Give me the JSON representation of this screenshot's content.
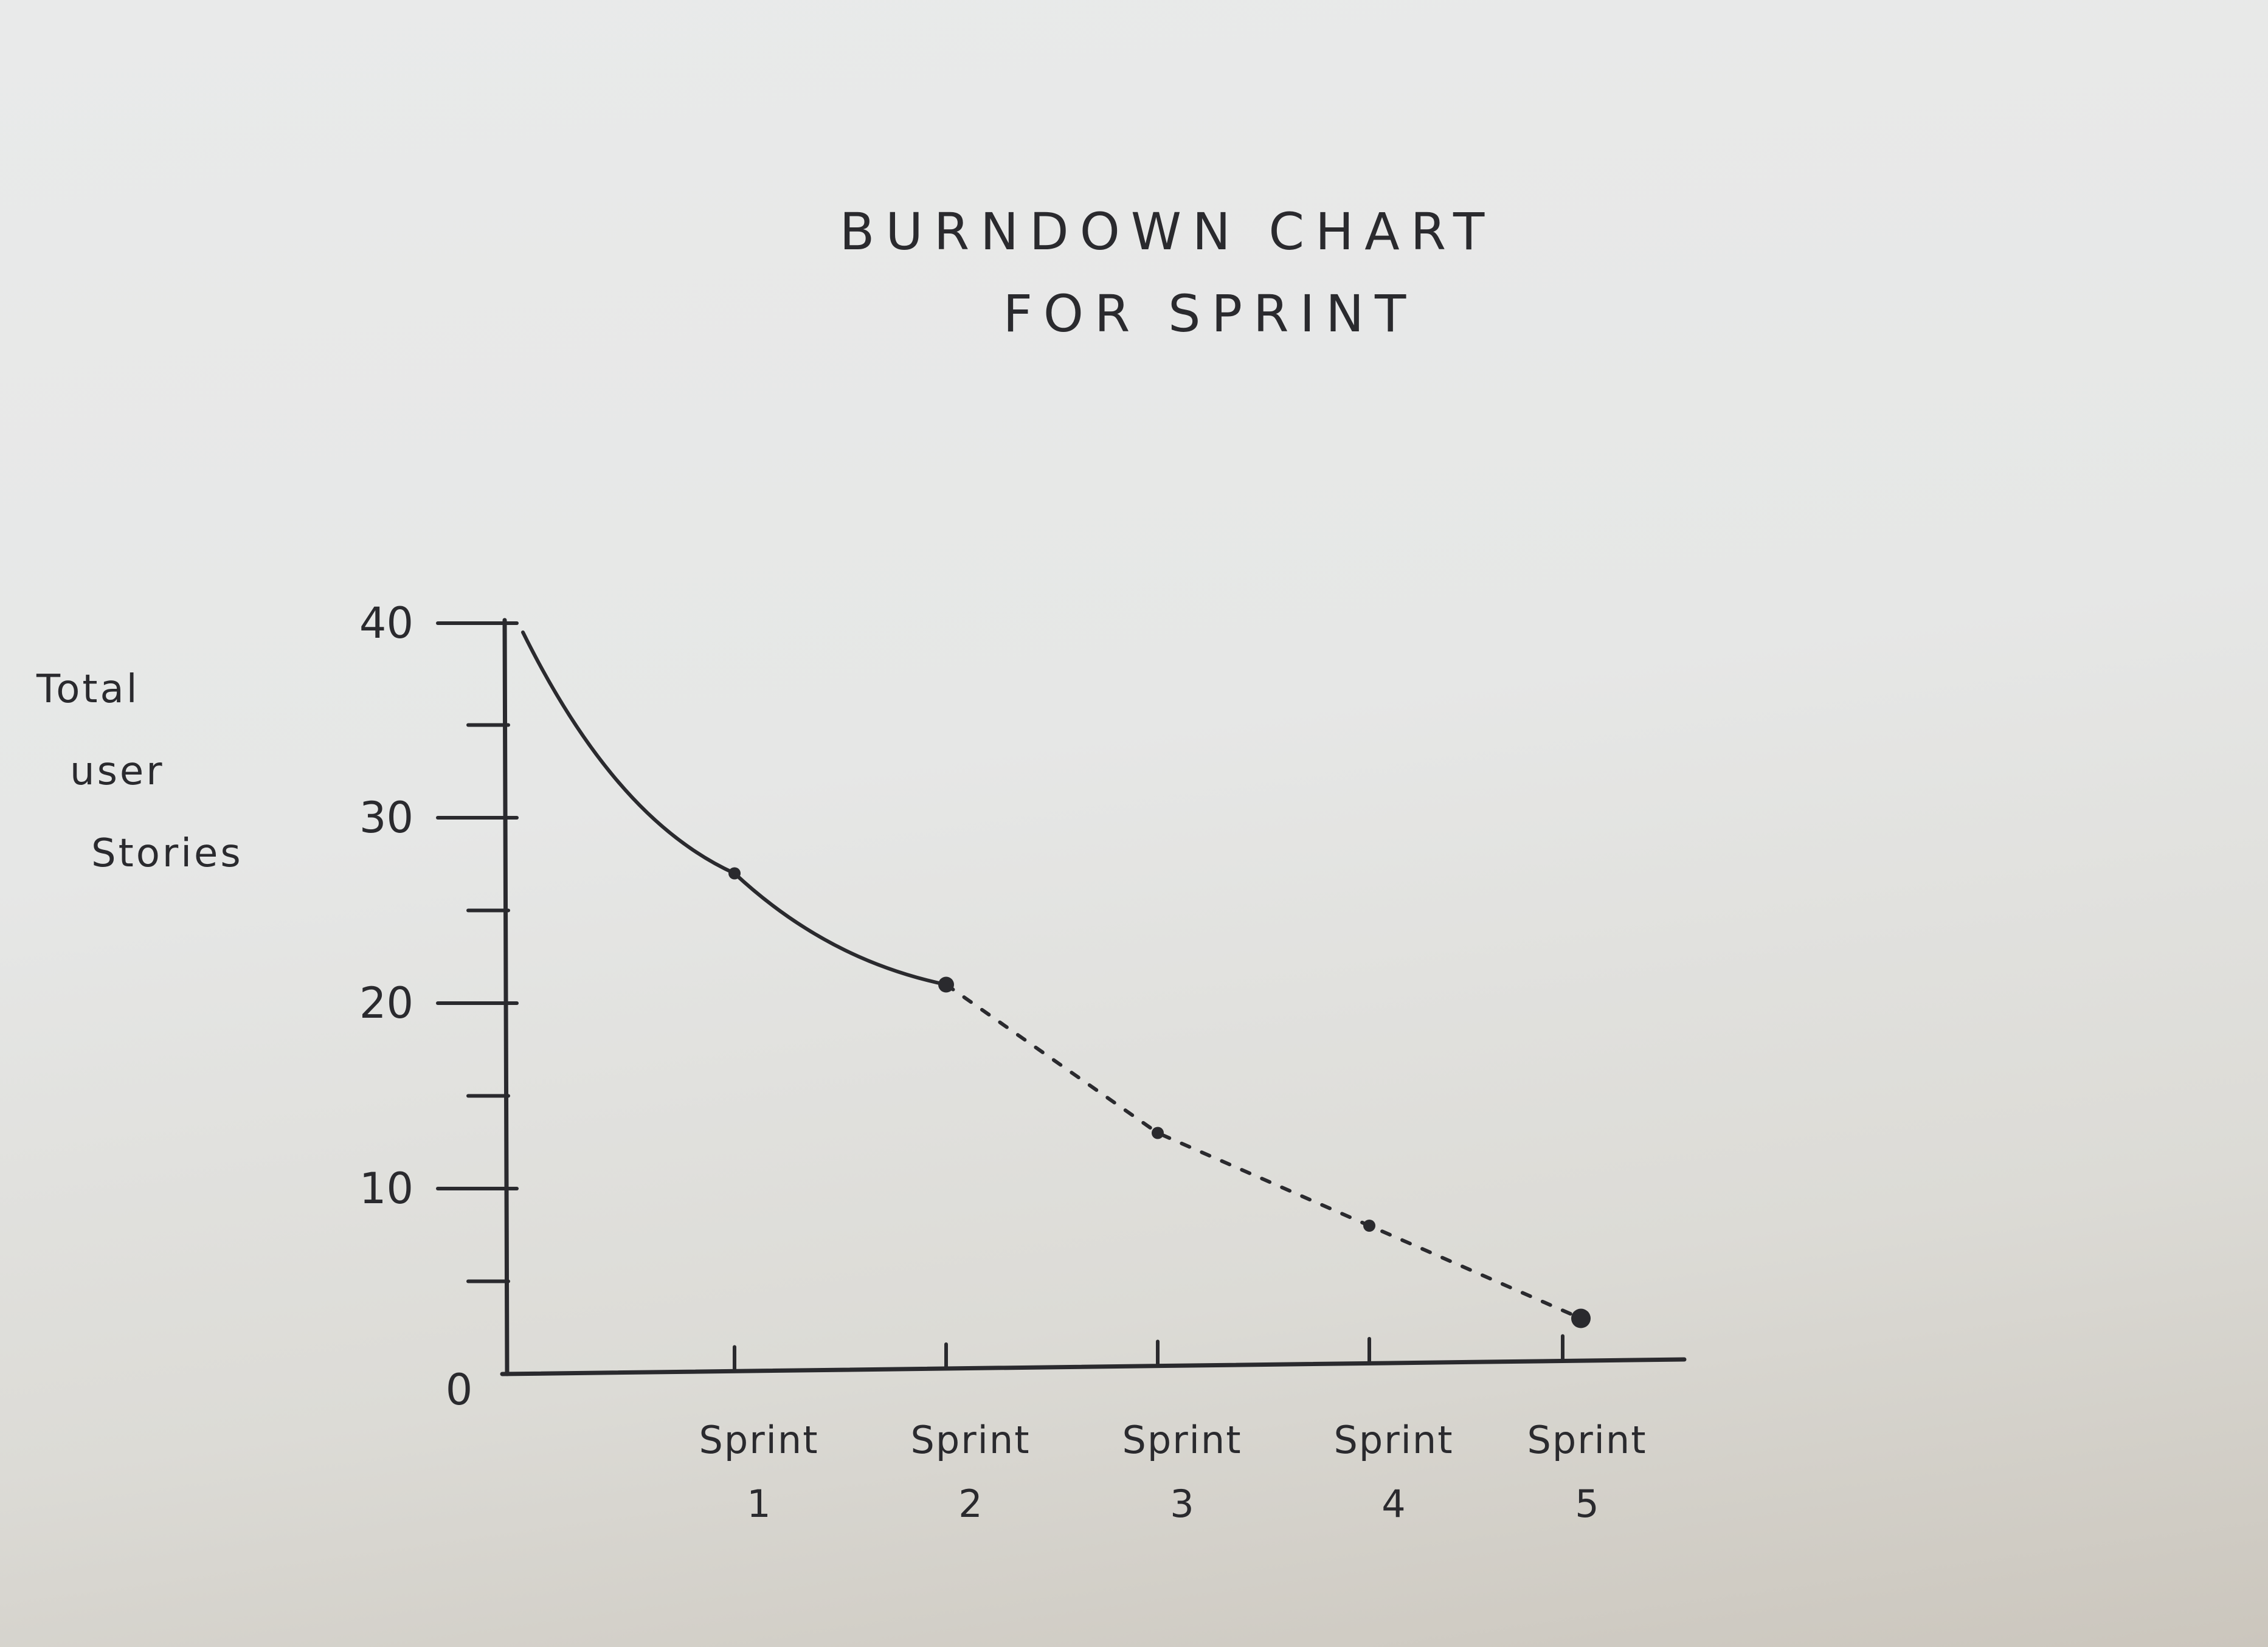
{
  "chart_data": {
    "type": "line",
    "title": [
      "BURNDOWN CHART",
      "FOR SPRINT"
    ],
    "ylabel": [
      "Total",
      "user",
      "Stories"
    ],
    "xlabel": "",
    "origin_label": "0",
    "ylim": [
      0,
      40
    ],
    "y_ticks": [
      10,
      20,
      30,
      40
    ],
    "y_minor_ticks": [
      5,
      15,
      25,
      35
    ],
    "categories": [
      {
        "name": "Sprint",
        "number": "1"
      },
      {
        "name": "Sprint",
        "number": "2"
      },
      {
        "name": "Sprint",
        "number": "3"
      },
      {
        "name": "Sprint",
        "number": "4"
      },
      {
        "name": "Sprint",
        "number": "5"
      }
    ],
    "series": [
      {
        "style": "solid",
        "points": [
          {
            "x": 0.0,
            "y": 40
          },
          {
            "x": 1.0,
            "y": 27
          },
          {
            "x": 2.0,
            "y": 21
          }
        ]
      },
      {
        "style": "dashed",
        "points": [
          {
            "x": 2.0,
            "y": 21
          },
          {
            "x": 3.0,
            "y": 13
          },
          {
            "x": 4.0,
            "y": 8
          },
          {
            "x": 5.0,
            "y": 3
          }
        ]
      }
    ],
    "grid": false,
    "ink_color": "#2a2a2e"
  }
}
